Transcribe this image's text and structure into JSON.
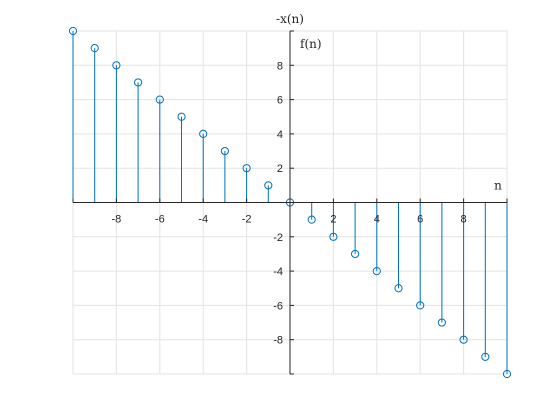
{
  "chart_data": {
    "type": "stem",
    "title": "-x(n)",
    "xlabel": "n",
    "ylabel": "f(n)",
    "xlim": [
      -10,
      10
    ],
    "ylim": [
      -10,
      10
    ],
    "x_ticks": [
      -8,
      -6,
      -4,
      -2,
      2,
      4,
      6,
      8
    ],
    "y_ticks": [
      -8,
      -6,
      -4,
      -2,
      2,
      4,
      6,
      8
    ],
    "grid": true,
    "axis_location": "origin",
    "series": [
      {
        "x": [
          -10,
          -9,
          -8,
          -7,
          -6,
          -5,
          -4,
          -3,
          -2,
          -1,
          0,
          1,
          2,
          3,
          4,
          5,
          6,
          7,
          8,
          9,
          10
        ],
        "y": [
          10,
          9,
          8,
          7,
          6,
          5,
          4,
          3,
          2,
          1,
          0,
          -1,
          -2,
          -3,
          -4,
          -5,
          -6,
          -7,
          -8,
          -9,
          -10
        ],
        "color": "#0072BD",
        "marker": "circle"
      }
    ]
  }
}
